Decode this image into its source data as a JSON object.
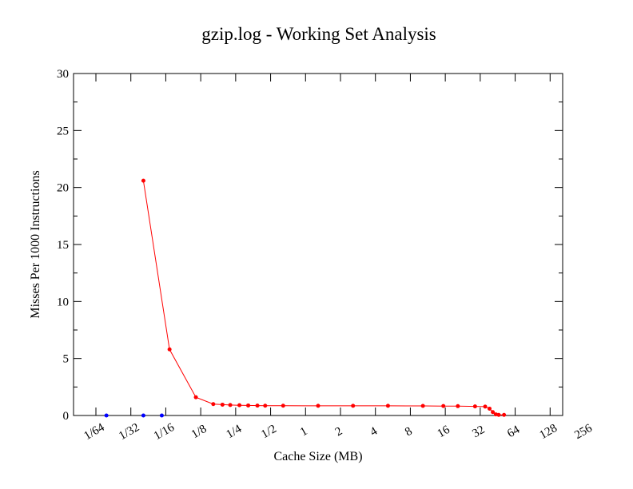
{
  "chart_data": {
    "type": "line",
    "title": "gzip.log - Working Set Analysis",
    "xlabel": "Cache Size (MB)",
    "ylabel": "Misses Per 1000 Instructions",
    "x_scale": "log2",
    "x_ticks": [
      "1/64",
      "1/32",
      "1/16",
      "1/8",
      "1/4",
      "1/2",
      "1",
      "2",
      "4",
      "8",
      "16",
      "32",
      "64",
      "128",
      "256"
    ],
    "xlim": [
      0.015625,
      256
    ],
    "y_ticks": [
      0,
      5,
      10,
      15,
      20,
      25,
      30
    ],
    "ylim": [
      0,
      30
    ],
    "grid": false,
    "colors": {
      "series_red": "#ff0000",
      "series_blue": "#0000ff",
      "axis": "#000000"
    },
    "series": [
      {
        "color": "#ff0000",
        "points": [
          [
            0.0625,
            20.6
          ],
          [
            0.105,
            5.8
          ],
          [
            0.177,
            1.6
          ],
          [
            0.25,
            1.0
          ],
          [
            0.3,
            0.95
          ],
          [
            0.35,
            0.92
          ],
          [
            0.42,
            0.9
          ],
          [
            0.5,
            0.88
          ],
          [
            0.6,
            0.87
          ],
          [
            0.7,
            0.86
          ],
          [
            1,
            0.86
          ],
          [
            2,
            0.85
          ],
          [
            4,
            0.85
          ],
          [
            8,
            0.85
          ],
          [
            16,
            0.84
          ],
          [
            24,
            0.83
          ],
          [
            32,
            0.82
          ],
          [
            45,
            0.8
          ],
          [
            55,
            0.78
          ],
          [
            60,
            0.6
          ],
          [
            64,
            0.3
          ],
          [
            68,
            0.1
          ],
          [
            72,
            0.05
          ],
          [
            80,
            0.05
          ]
        ]
      },
      {
        "color": "#0000ff",
        "points": [
          [
            0.03,
            0.0
          ],
          [
            0.0625,
            0.0
          ],
          [
            0.09,
            0.0
          ]
        ]
      }
    ]
  }
}
